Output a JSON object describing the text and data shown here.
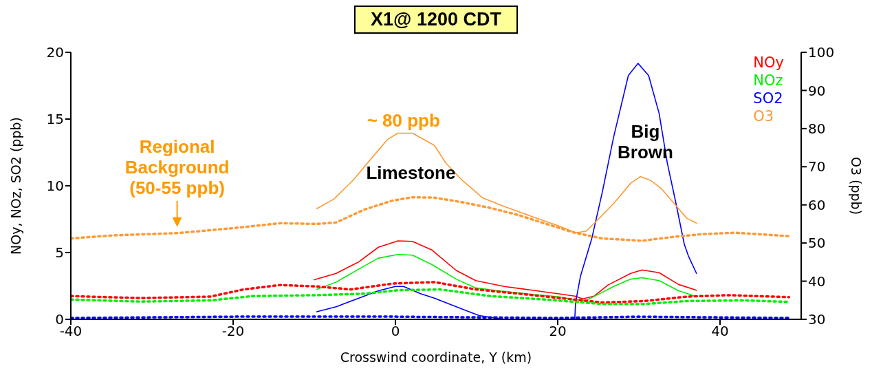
{
  "chart_data": {
    "type": "line",
    "title": "X1@ 1200 CDT",
    "xlabel": "Crosswind coordinate, Y (km)",
    "ylabel": "NOy, NOz, SO2 (ppb)",
    "y2label": "O3 (ppb)",
    "xlim": [
      -40,
      50
    ],
    "xticks": [
      -40,
      -20,
      0,
      20,
      40
    ],
    "ylim": [
      0,
      20
    ],
    "yticks": [
      0,
      5,
      10,
      15,
      20
    ],
    "y2lim": [
      30,
      100
    ],
    "y2ticks": [
      30,
      40,
      50,
      60,
      70,
      80,
      90,
      100
    ],
    "legend": "top right",
    "annotations": [
      "~ 80 ppb",
      "Regional\nBackground\n(50-55 ppb)",
      "Limestone",
      "Big\nBrown"
    ],
    "series": [
      {
        "name": "NOy",
        "color": "#ff0000",
        "line_style": "solid",
        "x": [
          -10,
          -7.3,
          -4.5,
          -2.1,
          0.3,
          2.1,
          4.5,
          7.5,
          9.9,
          13.4,
          16.9,
          20,
          22.1,
          23.1,
          24.5,
          26.2,
          29,
          30.4,
          32.5,
          34.9,
          37.1
        ],
        "values": [
          2.96,
          3.44,
          4.31,
          5.4,
          5.88,
          5.84,
          5.19,
          3.66,
          2.9,
          2.46,
          2.18,
          1.92,
          1.74,
          1.53,
          1.74,
          2.57,
          3.44,
          3.7,
          3.49,
          2.61,
          2.18
        ]
      },
      {
        "name": "NOz",
        "color": "#00ee00",
        "line_style": "solid",
        "x": [
          -9.7,
          -7.3,
          -4.5,
          -2.1,
          0.3,
          2.1,
          4.5,
          7.5,
          9.9,
          13.4,
          16.9,
          20,
          22.1,
          23.5,
          24.8,
          26.9,
          29,
          30.4,
          32.5,
          34.9,
          37.1
        ],
        "values": [
          2.24,
          2.79,
          3.77,
          4.58,
          4.86,
          4.81,
          4.1,
          3.01,
          2.35,
          2.09,
          1.87,
          1.7,
          1.48,
          1.42,
          1.81,
          2.46,
          3.01,
          3.12,
          2.9,
          2.14,
          1.7
        ]
      },
      {
        "name": "SO2",
        "color": "#0000ff",
        "line_style": "solid",
        "x": [
          -9.7,
          -7.3,
          -4.5,
          -2.1,
          0,
          1,
          3.1,
          4.8,
          7.5,
          10.3,
          13.4,
          16.9,
          22.1,
          22.2,
          22.8,
          24.2,
          25.5,
          26.9,
          28.7,
          29.9,
          31.2,
          32.5,
          33.5,
          34.5,
          35.6,
          36.1,
          37.1
        ],
        "values": [
          0.57,
          0.94,
          1.59,
          2.14,
          2.46,
          2.46,
          1.92,
          1.59,
          0.94,
          0.28,
          0,
          0,
          0,
          1.26,
          3.22,
          6.06,
          9.54,
          13.68,
          18.26,
          19.17,
          18.26,
          15.42,
          11.72,
          8.89,
          5.62,
          4.75,
          3.44
        ]
      },
      {
        "name": "O3",
        "color": "#ff9933",
        "axis": "y2",
        "line_style": "solid",
        "x": [
          -9.7,
          -7.6,
          -5.2,
          -2.8,
          -1,
          0.3,
          2.1,
          4.8,
          6.2,
          8.2,
          10.7,
          13.4,
          16.9,
          20,
          22.2,
          23.5,
          24.8,
          26.9,
          29,
          30.2,
          31.4,
          32.8,
          34.5,
          35.9,
          37.1
        ],
        "values": [
          59,
          61.5,
          66.5,
          72.6,
          77.1,
          78.8,
          78.8,
          75.6,
          71,
          66.5,
          61.9,
          59.6,
          56.9,
          54.6,
          52.7,
          53.1,
          55.8,
          60.4,
          65.7,
          67.4,
          66.5,
          64.2,
          60,
          56.5,
          55.2
        ]
      },
      {
        "color": "#ff0000",
        "line_style": "dotted",
        "x": [
          -40,
          -31.4,
          -22.8,
          -18.7,
          -14.2,
          -9.7,
          -5.5,
          -0.3,
          4.8,
          9.9,
          15.2,
          20.3,
          25.5,
          30.7,
          35.9,
          41.1,
          48.5
        ],
        "values": [
          1.74,
          1.59,
          1.7,
          2.24,
          2.57,
          2.46,
          2.24,
          2.68,
          2.79,
          2.24,
          1.92,
          1.59,
          1.26,
          1.37,
          1.7,
          1.81,
          1.66
        ]
      },
      {
        "color": "#00ee00",
        "line_style": "dotted",
        "x": [
          -40,
          -31.4,
          -22.8,
          -17.6,
          -9.7,
          -3.8,
          0.3,
          5.5,
          11.7,
          18.6,
          25.5,
          30.7,
          35.9,
          42.8,
          48.5
        ],
        "values": [
          1.48,
          1.33,
          1.42,
          1.74,
          1.81,
          1.92,
          2.18,
          2.24,
          1.74,
          1.48,
          1.15,
          1.15,
          1.37,
          1.42,
          1.31
        ]
      },
      {
        "color": "#0000ff",
        "line_style": "dotted",
        "x": [
          -40,
          -20,
          0,
          20,
          30,
          48.5
        ],
        "values": [
          0.1,
          0.2,
          0.2,
          0.1,
          0.2,
          0.1
        ]
      },
      {
        "color": "#ff9933",
        "axis": "y2",
        "line_style": "dotted",
        "x": [
          -40,
          -34.9,
          -26.9,
          -20,
          -14.2,
          -9.7,
          -7.3,
          -3.8,
          -0.4,
          2.1,
          4.8,
          8.2,
          11.7,
          15.2,
          18.6,
          22.1,
          25.5,
          30.4,
          34.2,
          37.6,
          41.8,
          44.9,
          48.5
        ],
        "values": [
          51.2,
          52,
          52.6,
          53.9,
          55.2,
          55,
          55.4,
          58.8,
          61.1,
          62,
          61.9,
          60.7,
          59.2,
          57.3,
          55,
          52.7,
          51.2,
          50.6,
          51.6,
          52.3,
          52.7,
          52.3,
          51.8
        ]
      }
    ]
  }
}
